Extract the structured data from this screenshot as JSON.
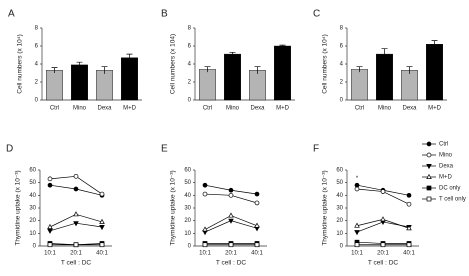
{
  "chart_data": [
    {
      "type": "bar",
      "panel": "A",
      "ylabel": "Cell numbers (x 10⁴)",
      "categories": [
        "Ctrl",
        "Mino",
        "Dexa",
        "M+D"
      ],
      "values": [
        3.3,
        3.9,
        3.3,
        4.7
      ],
      "errors": [
        0.3,
        0.3,
        0.4,
        0.4
      ],
      "colors": [
        "#b4b4b4",
        "#000000",
        "#b4b4b4",
        "#000000"
      ],
      "ylim": [
        0,
        8
      ],
      "yticks": [
        0,
        2,
        4,
        6,
        8
      ]
    },
    {
      "type": "bar",
      "panel": "B",
      "ylabel": "Cell numbers (x 104)",
      "categories": [
        "Ctrl",
        "Mino",
        "Dexa",
        "M+D"
      ],
      "values": [
        3.4,
        5.1,
        3.3,
        6.0
      ],
      "errors": [
        0.3,
        0.2,
        0.4,
        0.1
      ],
      "colors": [
        "#b4b4b4",
        "#000000",
        "#b4b4b4",
        "#000000"
      ],
      "ylim": [
        0,
        8
      ],
      "yticks": [
        0,
        2,
        4,
        6,
        8
      ]
    },
    {
      "type": "bar",
      "panel": "C",
      "ylabel": "Cell numbers (x 10⁴)",
      "categories": [
        "Ctrl",
        "Mino",
        "Dexa",
        "M+D"
      ],
      "values": [
        3.4,
        5.1,
        3.3,
        6.2
      ],
      "errors": [
        0.3,
        0.6,
        0.4,
        0.4
      ],
      "colors": [
        "#b4b4b4",
        "#000000",
        "#b4b4b4",
        "#000000"
      ],
      "ylim": [
        0,
        8
      ],
      "yticks": [
        0,
        2,
        4,
        6,
        8
      ]
    },
    {
      "type": "line",
      "panel": "D",
      "ylabel": "Thymidine uptake (x 10⁻³)",
      "xlabel": "T cell : DC",
      "categories": [
        "10:1",
        "20:1",
        "40:1"
      ],
      "ylim": [
        0,
        60
      ],
      "yticks": [
        0,
        10,
        20,
        30,
        40,
        50,
        60
      ],
      "series": [
        {
          "values": [
            48,
            45,
            40
          ]
        },
        {
          "values": [
            53,
            55,
            41
          ]
        },
        {
          "values": [
            12,
            18,
            15
          ]
        },
        {
          "values": [
            15,
            25,
            19
          ]
        },
        {
          "values": [
            2,
            1,
            2
          ]
        },
        {
          "values": [
            1,
            1,
            1
          ]
        }
      ]
    },
    {
      "type": "line",
      "panel": "E",
      "ylabel": "Thymidine uptake (x 10⁻³)",
      "xlabel": "T cell : DC",
      "categories": [
        "10:1",
        "20:1",
        "40:1"
      ],
      "ylim": [
        0,
        60
      ],
      "yticks": [
        0,
        10,
        20,
        30,
        40,
        50,
        60
      ],
      "series": [
        {
          "values": [
            48,
            44,
            41
          ]
        },
        {
          "values": [
            41,
            40,
            34
          ]
        },
        {
          "values": [
            11,
            20,
            14
          ]
        },
        {
          "values": [
            13,
            24,
            16
          ]
        },
        {
          "values": [
            2,
            2,
            2
          ]
        },
        {
          "values": [
            1,
            1,
            1
          ]
        }
      ]
    },
    {
      "type": "line",
      "panel": "F",
      "ylabel": "Thymidine uptake (x 10⁻³)",
      "xlabel": "T cell : DC",
      "categories": [
        "10:1",
        "20:1",
        "40:1"
      ],
      "ylim": [
        0,
        60
      ],
      "yticks": [
        0,
        10,
        20,
        30,
        40,
        50,
        60
      ],
      "annotation": "*",
      "series": [
        {
          "values": [
            48,
            44,
            40
          ]
        },
        {
          "values": [
            45,
            43,
            33
          ]
        },
        {
          "values": [
            11,
            19,
            15
          ]
        },
        {
          "values": [
            16,
            21,
            14
          ]
        },
        {
          "values": [
            3,
            2,
            2
          ]
        },
        {
          "values": [
            1,
            1,
            1
          ]
        }
      ]
    }
  ],
  "legend": [
    {
      "name": "Ctrl",
      "marker": "circle",
      "filled": true
    },
    {
      "name": "Mino",
      "marker": "circle",
      "filled": false
    },
    {
      "name": "Dexa",
      "marker": "triangle-down",
      "filled": true
    },
    {
      "name": "M+D",
      "marker": "triangle-up",
      "filled": false
    },
    {
      "name": "DC only",
      "marker": "square",
      "filled": true
    },
    {
      "name": "T cell only",
      "marker": "square",
      "filled": false
    }
  ]
}
